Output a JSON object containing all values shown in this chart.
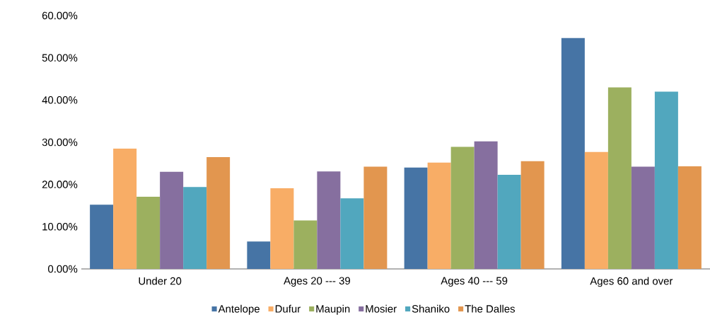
{
  "chart_data": {
    "type": "bar",
    "categories": [
      "Under 20",
      "Ages 20 --- 39",
      "Ages 40 --- 59",
      "Ages 60 and over"
    ],
    "series": [
      {
        "name": "Antelope",
        "color": "#4674a5",
        "values": [
          15.2,
          6.5,
          24.0,
          54.7
        ]
      },
      {
        "name": "Dufur",
        "color": "#f8ad66",
        "values": [
          28.5,
          19.1,
          25.2,
          27.7
        ]
      },
      {
        "name": "Maupin",
        "color": "#9cb05f",
        "values": [
          17.1,
          11.5,
          28.9,
          43.0
        ]
      },
      {
        "name": "Mosier",
        "color": "#866f9f",
        "values": [
          23.0,
          23.1,
          30.2,
          24.2
        ]
      },
      {
        "name": "Shaniko",
        "color": "#51a7be",
        "values": [
          19.4,
          16.7,
          22.3,
          42.0
        ]
      },
      {
        "name": "The Dalles",
        "color": "#e2964f",
        "values": [
          26.5,
          24.2,
          25.5,
          24.3
        ]
      }
    ],
    "ylim": [
      0,
      60
    ],
    "yticks": [
      {
        "value": 0,
        "label": "0.00%"
      },
      {
        "value": 10,
        "label": "10.00%"
      },
      {
        "value": 20,
        "label": "20.00%"
      },
      {
        "value": 30,
        "label": "30.00%"
      },
      {
        "value": 40,
        "label": "40.00%"
      },
      {
        "value": 50,
        "label": "50.00%"
      },
      {
        "value": 60,
        "label": "60.00%"
      }
    ],
    "grid": false,
    "legend": "bottom"
  }
}
